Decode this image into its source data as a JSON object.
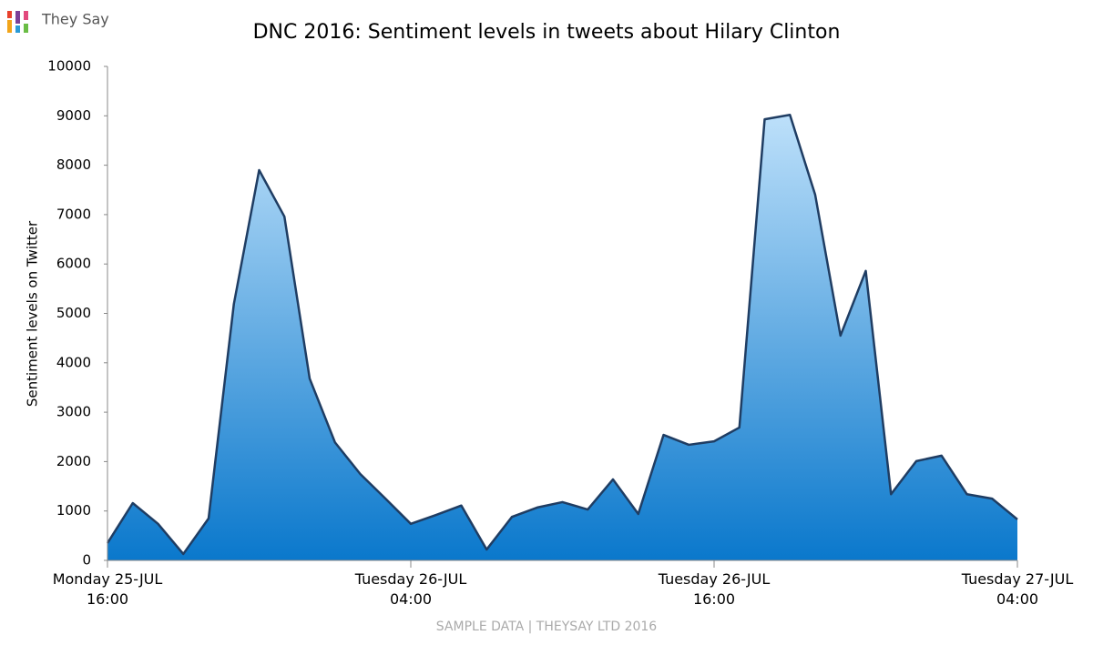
{
  "brand": "They Say",
  "chart_data": {
    "type": "area",
    "title": "DNC 2016: Sentiment levels in tweets about Hilary Clinton",
    "y_label": "Sentiment levels on Twitter",
    "source": "SAMPLE DATA | THEYSAY LTD 2016",
    "categories": [
      "Monday 25-JUL\n16:00",
      null,
      null,
      null,
      null,
      null,
      null,
      null,
      null,
      null,
      null,
      null,
      "Tuesday 26-JUL\n04:00",
      null,
      null,
      null,
      null,
      null,
      null,
      null,
      null,
      null,
      null,
      null,
      "Tuesday 26-JUL\n16:00",
      null,
      null,
      null,
      null,
      null,
      null,
      null,
      null,
      null,
      null,
      null,
      "Tuesday 27-JUL\n04:00"
    ],
    "values": [
      350,
      1160,
      740,
      130,
      850,
      5190,
      7900,
      6960,
      3680,
      2390,
      1750,
      1250,
      740,
      920,
      1110,
      220,
      880,
      1070,
      1180,
      1030,
      1640,
      940,
      2540,
      2340,
      2410,
      2690,
      8930,
      9020,
      7400,
      4550,
      5860,
      1340,
      2010,
      2120,
      1340,
      1250,
      830
    ],
    "color": "#1f3d63",
    "fill_top": "#bde0fa",
    "fill_bottom": "#0a78cc",
    "ylim": [
      0,
      10000
    ],
    "yticks": [
      0,
      1000,
      2000,
      3000,
      4000,
      5000,
      6000,
      7000,
      8000,
      9000,
      10000
    ],
    "grid": false
  }
}
